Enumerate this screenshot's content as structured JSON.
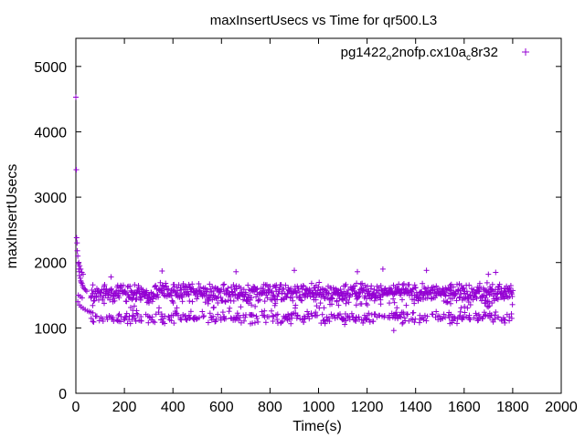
{
  "chart_data": {
    "type": "scatter",
    "title": "maxInsertUsecs vs Time for qr500.L3",
    "xlabel": "Time(s)",
    "ylabel": "maxInsertUsecs",
    "xlim": [
      0,
      2000
    ],
    "ylim": [
      0,
      5430
    ],
    "x_ticks": [
      0,
      200,
      400,
      600,
      800,
      1000,
      1200,
      1400,
      1600,
      1800,
      2000
    ],
    "y_ticks": [
      0,
      1000,
      2000,
      3000,
      4000,
      5000
    ],
    "x_tick_labels": [
      "0",
      "200",
      "400",
      "600",
      "800",
      "1000",
      "1200",
      "1400",
      "1600",
      "1800",
      "2000"
    ],
    "y_tick_labels": [
      "0",
      "1000",
      "2000",
      "3000",
      "4000",
      "5000"
    ],
    "grid": false,
    "legend_position": "top-right",
    "marker": "+",
    "series": [
      {
        "name": "pg1422_o2nofp.cx10a_c8r32",
        "legend_text": {
          "part1": "pg1422",
          "sub1": "o",
          "part2": "2nofp.cx10a",
          "sub2": "c",
          "part3": "8r32"
        },
        "color": "#9400d3",
        "early_points": [
          [
            0,
            4530
          ],
          [
            2,
            3420
          ],
          [
            3,
            2380
          ],
          [
            5,
            2300
          ],
          [
            6,
            2180
          ],
          [
            8,
            2100
          ],
          [
            10,
            1980
          ],
          [
            12,
            1900
          ],
          [
            14,
            1860
          ],
          [
            15,
            1800
          ],
          [
            18,
            1760
          ],
          [
            20,
            1720
          ],
          [
            22,
            1700
          ],
          [
            25,
            1680
          ],
          [
            28,
            1650
          ],
          [
            30,
            1620
          ],
          [
            35,
            1600
          ],
          [
            40,
            1580
          ],
          [
            45,
            1560
          ],
          [
            8,
            1400
          ],
          [
            15,
            1350
          ],
          [
            22,
            1320
          ],
          [
            30,
            1300
          ],
          [
            38,
            1280
          ],
          [
            48,
            1260
          ],
          [
            55,
            1250
          ],
          [
            62,
            1240
          ],
          [
            70,
            1230
          ],
          [
            12,
            2000
          ],
          [
            16,
            1950
          ],
          [
            20,
            1900
          ],
          [
            25,
            1850
          ],
          [
            30,
            1820
          ],
          [
            10,
            1500
          ],
          [
            18,
            1480
          ],
          [
            26,
            1460
          ]
        ],
        "band_upper_center": 1540,
        "band_upper_spread": 160,
        "band_lower_center": 1160,
        "band_lower_spread": 110,
        "time_range": [
          60,
          1800
        ],
        "notable_points": [
          [
            145,
            1780
          ],
          [
            355,
            1870
          ],
          [
            660,
            1860
          ],
          [
            900,
            1880
          ],
          [
            1160,
            1860
          ],
          [
            1265,
            1900
          ],
          [
            1445,
            1880
          ],
          [
            1730,
            1850
          ],
          [
            1310,
            960
          ],
          [
            1700,
            1820
          ]
        ]
      }
    ]
  }
}
